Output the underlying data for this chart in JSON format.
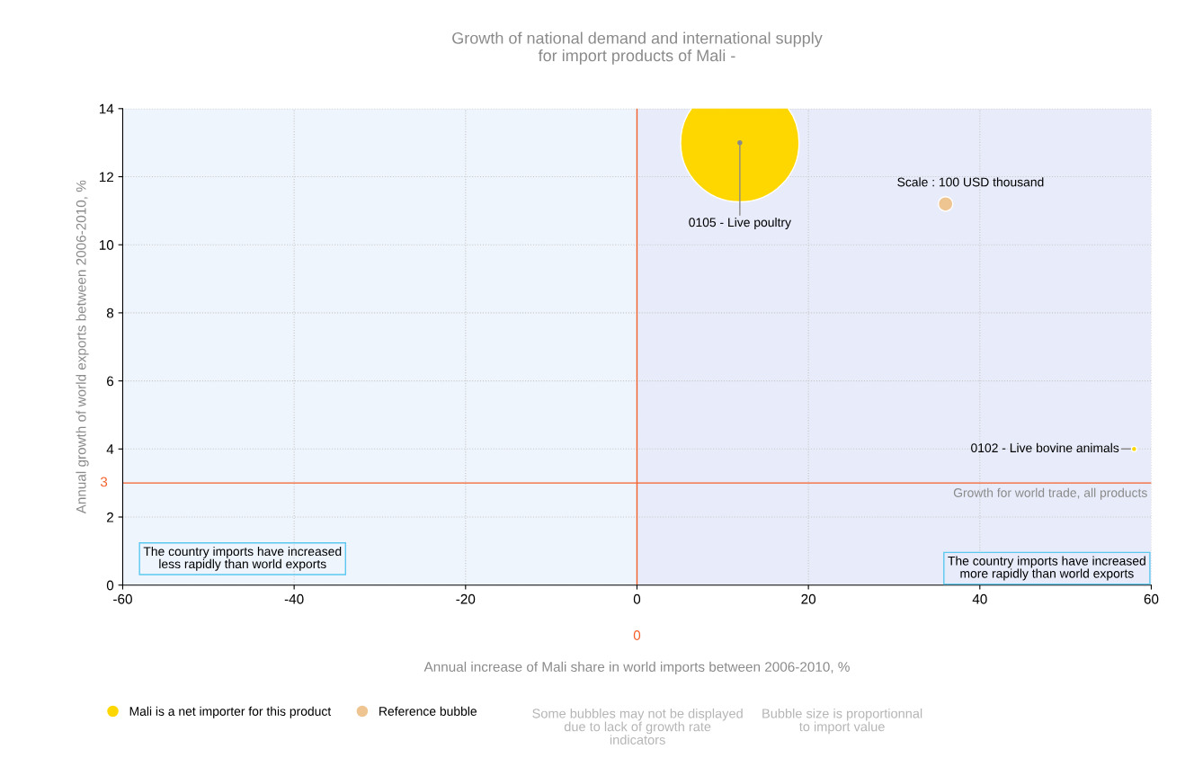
{
  "chart_data": {
    "type": "bubble",
    "title": "Growth of national demand and international supply\nfor import products of Mali -",
    "xlabel": "Annual increase of Mali share in world imports between 2006-2010, %",
    "ylabel": "Annual growth of world exports between 2006-2010, %",
    "series": [
      {
        "name": "Mali is a net importer for this product",
        "color": "#ffd700",
        "x": [
          12,
          58
        ],
        "values": [
          13,
          4
        ],
        "sizes": [
          1,
          0.002
        ]
      },
      {
        "name": "Reference bubble",
        "color": "#eec591",
        "x": [
          36
        ],
        "values": [
          11.2
        ],
        "sizes": [
          0.015
        ]
      }
    ],
    "xlim": [
      -60,
      60
    ],
    "xticks": [
      -60,
      -40,
      -20,
      0,
      20,
      40,
      60
    ],
    "ylim": [
      0,
      14
    ],
    "yticks": [
      0,
      2,
      4,
      6,
      8,
      10,
      12,
      14
    ],
    "grid": true,
    "legend": "bottom",
    "bands": [
      {
        "axis": "x",
        "from": -60,
        "to": 0,
        "color": "#eef5fd"
      },
      {
        "axis": "x",
        "from": 0,
        "to": 60,
        "color": "#e8ecfa"
      }
    ],
    "ref_lines": [
      {
        "axis": "x",
        "value": 0,
        "label": "0",
        "color": "#f4602a"
      },
      {
        "axis": "y",
        "value": 3,
        "label": "3",
        "color": "#f4602a"
      }
    ],
    "annotations": [
      {
        "text": "0105 - Live poultry",
        "x": 12,
        "y": 13
      },
      {
        "text": "0102 - Live bovine animals",
        "x": 58,
        "y": 4
      },
      {
        "text": "Scale : 100 USD thousand",
        "x": 36,
        "y": 11.2
      },
      {
        "text": "Growth for world trade, all products",
        "y": 3
      },
      "The country imports have increased\nless rapidly than world exports",
      "The country imports have increased\nmore rapidly than world exports",
      "Some bubbles may not be displayed\ndue to lack of growth rate\nindicators",
      "Bubble size is proportionnal\nto import value"
    ]
  }
}
